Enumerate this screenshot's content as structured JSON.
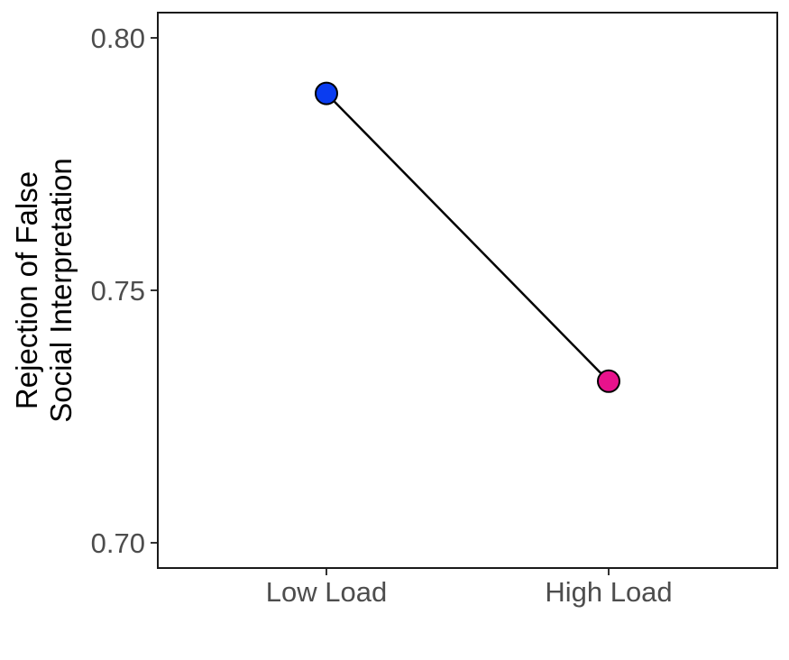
{
  "chart_data": {
    "type": "line",
    "categories": [
      "Low Load",
      "High Load"
    ],
    "series": [
      {
        "values": [
          0.789,
          0.732
        ],
        "point_colors": [
          "#0a3cf0",
          "#e8128c"
        ]
      }
    ],
    "title": "",
    "xlabel": "",
    "ylabel_lines": [
      "Rejection of False",
      "Social Interpretation"
    ],
    "ylim": [
      0.695,
      0.805
    ],
    "yticks": [
      0.7,
      0.75,
      0.8
    ],
    "ytick_labels": [
      "0.70",
      "0.75",
      "0.80"
    ],
    "grid": false,
    "legend": "none",
    "line_color": "#000000",
    "point_outline_color": "#000000"
  }
}
